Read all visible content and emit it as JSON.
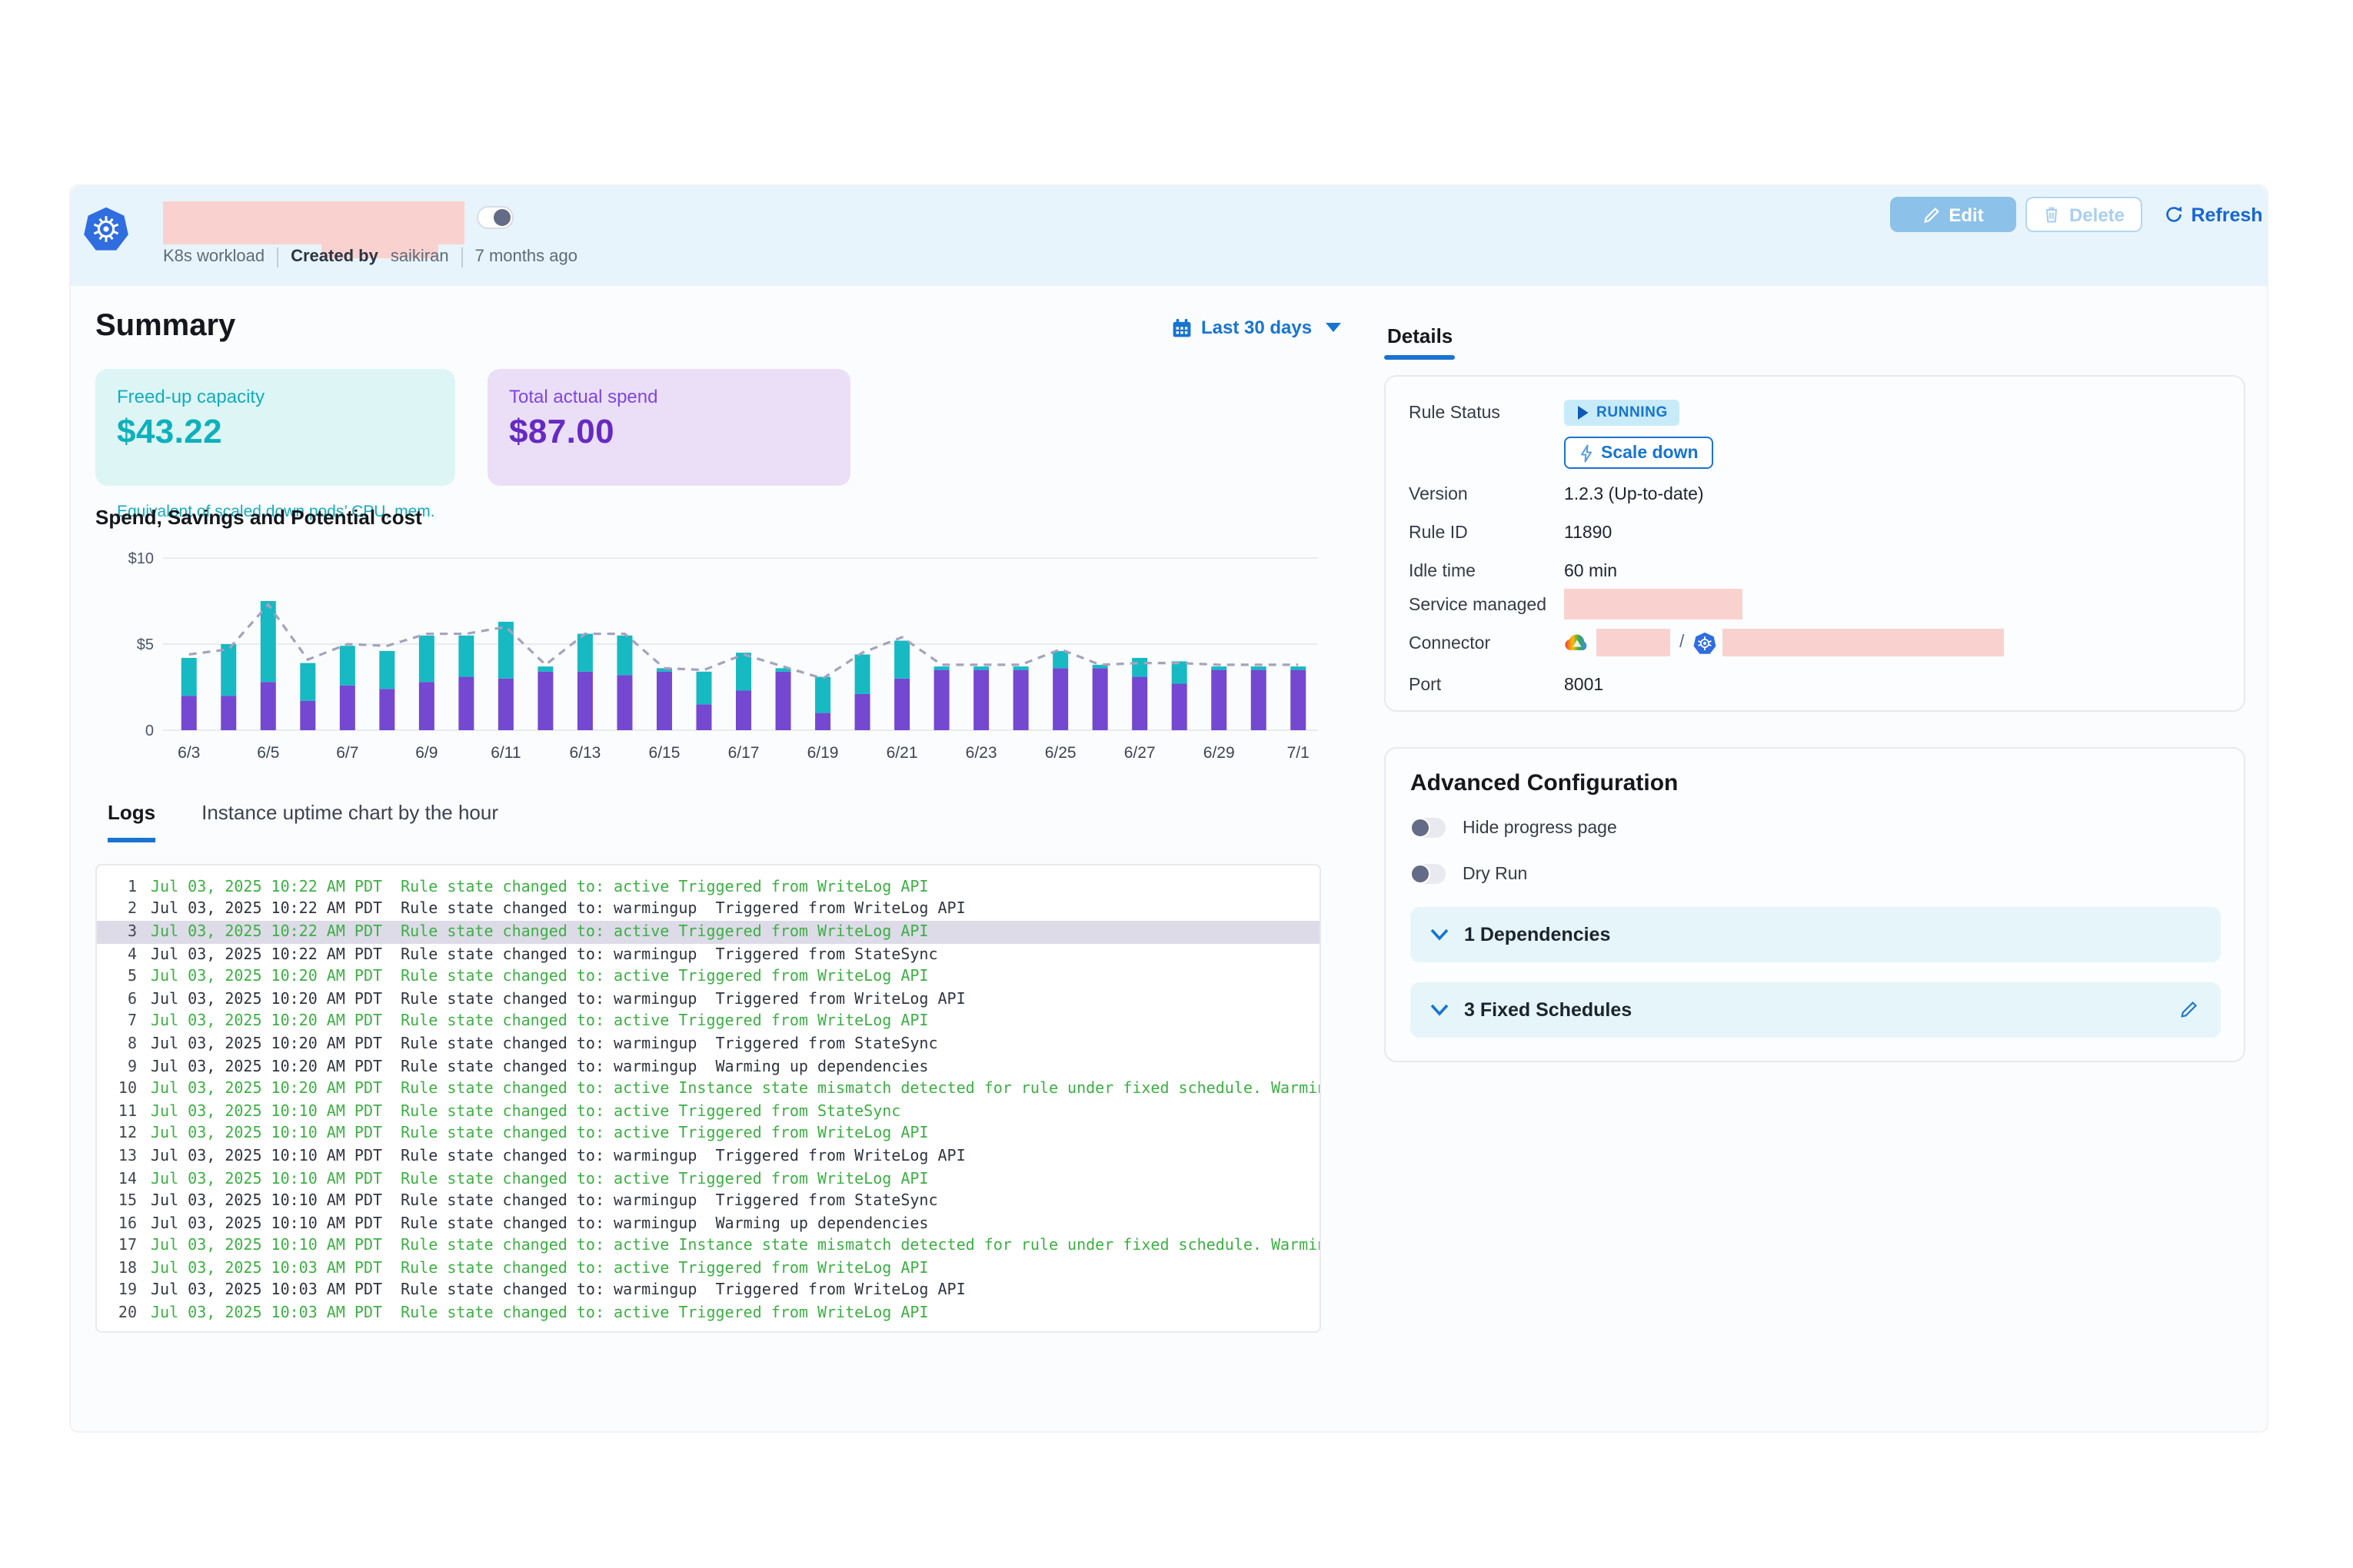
{
  "header": {
    "workload_type": "K8s workload",
    "created_by_label": "Created by",
    "created_by_user": "saikiran",
    "created_ago": "7 months ago",
    "edit_label": "Edit",
    "delete_label": "Delete",
    "refresh_label": "Refresh",
    "title_redacted": true,
    "title_toggle_on": true
  },
  "summary": {
    "title": "Summary",
    "date_range_label": "Last 30 days",
    "cards": [
      {
        "title": "Freed-up capacity",
        "value": "$43.22",
        "subtitle": "Equivalent of scaled down pods’ CPU, mem."
      },
      {
        "title": "Total actual spend",
        "value": "$87.00",
        "subtitle": ""
      }
    ]
  },
  "chart_data": {
    "type": "bar",
    "title": "Spend, Savings and Potential cost",
    "stacked": true,
    "grid": true,
    "legend": "none",
    "ylim": [
      0,
      10
    ],
    "y_ticks": [
      {
        "value": 10,
        "label": "$10"
      },
      {
        "value": 5,
        "label": "$5"
      },
      {
        "value": 0,
        "label": "0"
      }
    ],
    "x_tick_every": 2,
    "categories": [
      "6/3",
      "6/4",
      "6/5",
      "6/6",
      "6/7",
      "6/8",
      "6/9",
      "6/10",
      "6/11",
      "6/12",
      "6/13",
      "6/14",
      "6/15",
      "6/16",
      "6/17",
      "6/18",
      "6/19",
      "6/20",
      "6/21",
      "6/22",
      "6/23",
      "6/24",
      "6/25",
      "6/26",
      "6/27",
      "6/28",
      "6/29",
      "6/30",
      "7/1"
    ],
    "series": [
      {
        "name": "Spend",
        "type": "bar",
        "color": "#7448d1",
        "values": [
          2.0,
          2.0,
          2.8,
          1.7,
          2.6,
          2.4,
          2.8,
          3.1,
          3.0,
          3.4,
          3.4,
          3.2,
          3.4,
          1.5,
          2.3,
          3.4,
          1.0,
          2.1,
          3.0,
          3.5,
          3.5,
          3.5,
          3.6,
          3.6,
          3.1,
          2.7,
          3.5,
          3.5,
          3.5
        ]
      },
      {
        "name": "Savings",
        "type": "bar",
        "color": "#17b9c2",
        "values": [
          2.2,
          3.0,
          4.7,
          2.2,
          2.3,
          2.2,
          2.7,
          2.4,
          3.3,
          0.3,
          2.2,
          2.3,
          0.2,
          1.9,
          2.2,
          0.2,
          2.1,
          2.3,
          2.2,
          0.2,
          0.2,
          0.2,
          1.0,
          0.2,
          1.1,
          1.3,
          0.2,
          0.2,
          0.2
        ]
      },
      {
        "name": "Potential cost",
        "type": "line",
        "style": "dashed",
        "color": "#a6a2bd",
        "values": [
          4.4,
          4.7,
          7.3,
          4.1,
          5.0,
          4.9,
          5.6,
          5.6,
          6.0,
          3.8,
          5.6,
          5.6,
          3.6,
          3.5,
          4.4,
          3.7,
          3.0,
          4.5,
          5.4,
          3.8,
          3.8,
          3.8,
          4.7,
          3.8,
          3.9,
          3.9,
          3.8,
          3.8,
          3.8
        ]
      }
    ]
  },
  "tabs": {
    "logs": "Logs",
    "uptime": "Instance uptime chart by the hour"
  },
  "logs": {
    "rows": [
      {
        "n": "1",
        "time": "Jul 03, 2025 10:22 AM PDT",
        "message": "Rule state changed to: active Triggered from WriteLog API",
        "level": "active",
        "highlighted": false
      },
      {
        "n": "2",
        "time": "Jul 03, 2025 10:22 AM PDT",
        "message": "Rule state changed to: warmingup  Triggered from WriteLog API",
        "level": "warmingup",
        "highlighted": false
      },
      {
        "n": "3",
        "time": "Jul 03, 2025 10:22 AM PDT",
        "message": "Rule state changed to: active Triggered from WriteLog API",
        "level": "active",
        "highlighted": true
      },
      {
        "n": "4",
        "time": "Jul 03, 2025 10:22 AM PDT",
        "message": "Rule state changed to: warmingup  Triggered from StateSync",
        "level": "warmingup",
        "highlighted": false
      },
      {
        "n": "5",
        "time": "Jul 03, 2025 10:20 AM PDT",
        "message": "Rule state changed to: active Triggered from WriteLog API",
        "level": "active",
        "highlighted": false
      },
      {
        "n": "6",
        "time": "Jul 03, 2025 10:20 AM PDT",
        "message": "Rule state changed to: warmingup  Triggered from WriteLog API",
        "level": "warmingup",
        "highlighted": false
      },
      {
        "n": "7",
        "time": "Jul 03, 2025 10:20 AM PDT",
        "message": "Rule state changed to: active Triggered from WriteLog API",
        "level": "active",
        "highlighted": false
      },
      {
        "n": "8",
        "time": "Jul 03, 2025 10:20 AM PDT",
        "message": "Rule state changed to: warmingup  Triggered from StateSync",
        "level": "warmingup",
        "highlighted": false
      },
      {
        "n": "9",
        "time": "Jul 03, 2025 10:20 AM PDT",
        "message": "Rule state changed to: warmingup  Warming up dependencies",
        "level": "warmingup",
        "highlighted": false
      },
      {
        "n": "10",
        "time": "Jul 03, 2025 10:20 AM PDT",
        "message": "Rule state changed to: active Instance state mismatch detected for rule under fixed schedule. Warming up",
        "level": "active",
        "highlighted": false
      },
      {
        "n": "11",
        "time": "Jul 03, 2025 10:10 AM PDT",
        "message": "Rule state changed to: active Triggered from StateSync",
        "level": "active",
        "highlighted": false
      },
      {
        "n": "12",
        "time": "Jul 03, 2025 10:10 AM PDT",
        "message": "Rule state changed to: active Triggered from WriteLog API",
        "level": "active",
        "highlighted": false
      },
      {
        "n": "13",
        "time": "Jul 03, 2025 10:10 AM PDT",
        "message": "Rule state changed to: warmingup  Triggered from WriteLog API",
        "level": "warmingup",
        "highlighted": false
      },
      {
        "n": "14",
        "time": "Jul 03, 2025 10:10 AM PDT",
        "message": "Rule state changed to: active Triggered from WriteLog API",
        "level": "active",
        "highlighted": false
      },
      {
        "n": "15",
        "time": "Jul 03, 2025 10:10 AM PDT",
        "message": "Rule state changed to: warmingup  Triggered from StateSync",
        "level": "warmingup",
        "highlighted": false
      },
      {
        "n": "16",
        "time": "Jul 03, 2025 10:10 AM PDT",
        "message": "Rule state changed to: warmingup  Warming up dependencies",
        "level": "warmingup",
        "highlighted": false
      },
      {
        "n": "17",
        "time": "Jul 03, 2025 10:10 AM PDT",
        "message": "Rule state changed to: active Instance state mismatch detected for rule under fixed schedule. Warming up",
        "level": "active",
        "highlighted": false
      },
      {
        "n": "18",
        "time": "Jul 03, 2025 10:03 AM PDT",
        "message": "Rule state changed to: active Triggered from WriteLog API",
        "level": "active",
        "highlighted": false
      },
      {
        "n": "19",
        "time": "Jul 03, 2025 10:03 AM PDT",
        "message": "Rule state changed to: warmingup  Triggered from WriteLog API",
        "level": "warmingup",
        "highlighted": false
      },
      {
        "n": "20",
        "time": "Jul 03, 2025 10:03 AM PDT",
        "message": "Rule state changed to: active Triggered from WriteLog API",
        "level": "active",
        "highlighted": false
      }
    ]
  },
  "details": {
    "tab_label": "Details",
    "rule_status_label": "Rule Status",
    "rule_status_value": "RUNNING",
    "scale_down_label": "Scale down",
    "version_label": "Version",
    "version_value": "1.2.3 (Up-to-date)",
    "rule_id_label": "Rule ID",
    "rule_id_value": "11890",
    "idle_time_label": "Idle time",
    "idle_time_value": "60 min",
    "service_managed_label": "Service managed",
    "connector_label": "Connector",
    "connector_separator": "/",
    "port_label": "Port",
    "port_value": "8001"
  },
  "advanced": {
    "title": "Advanced Configuration",
    "toggles": [
      {
        "label": "Hide progress page",
        "on": false
      },
      {
        "label": "Dry Run",
        "on": false
      }
    ],
    "sections": [
      {
        "label": "1 Dependencies",
        "editable": false
      },
      {
        "label": "3 Fixed Schedules",
        "editable": true
      }
    ]
  },
  "colors": {
    "accent_blue": "#1774d1",
    "header_band": "#e8f4fb",
    "redaction_pink": "#f9d2cf",
    "log_green": "#3daf44",
    "bar_spend": "#7448d1",
    "bar_savings": "#17b9c2",
    "potential_line": "#a6a2bd",
    "freed_card_bg": "#ddf6f5",
    "spend_card_bg": "#ebdff8"
  }
}
